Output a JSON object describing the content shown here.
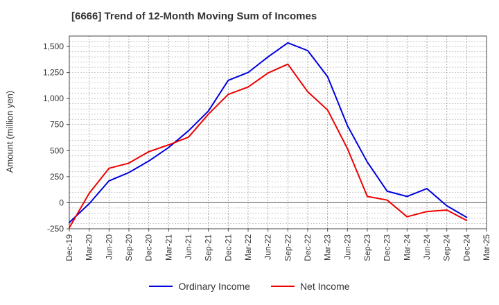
{
  "chart_data": {
    "type": "line",
    "title": "[6666]  Trend of 12-Month Moving Sum of Incomes",
    "ylabel": "Amount (million yen)",
    "xlabel": "",
    "ylim": [
      -250,
      1600
    ],
    "yticks": [
      -250,
      0,
      250,
      500,
      750,
      1000,
      1250,
      1500
    ],
    "ytick_labels": [
      "-250",
      "0",
      "250",
      "500",
      "750",
      "1,000",
      "1,250",
      "1,500"
    ],
    "categories": [
      "Dec-19",
      "Mar-20",
      "Jun-20",
      "Sep-20",
      "Dec-20",
      "Mar-21",
      "Jun-21",
      "Sep-21",
      "Dec-21",
      "Mar-22",
      "Jun-22",
      "Sep-22",
      "Dec-22",
      "Mar-23",
      "Jun-23",
      "Sep-23",
      "Dec-23",
      "Mar-24",
      "Jun-24",
      "Sep-24",
      "Dec-24",
      "Mar-25"
    ],
    "grid": true,
    "legend_position": "bottom",
    "series": [
      {
        "name": "Ordinary Income",
        "color": "#0000dd",
        "values": [
          -190,
          -10,
          210,
          290,
          400,
          530,
          690,
          880,
          1175,
          1250,
          1400,
          1535,
          1460,
          1210,
          740,
          390,
          110,
          60,
          135,
          -30,
          -140,
          null
        ]
      },
      {
        "name": "Net Income",
        "color": "#ee0000",
        "values": [
          -240,
          90,
          330,
          380,
          490,
          555,
          630,
          850,
          1040,
          1110,
          1245,
          1330,
          1065,
          890,
          520,
          60,
          25,
          -135,
          -85,
          -70,
          -170,
          null
        ]
      }
    ]
  }
}
